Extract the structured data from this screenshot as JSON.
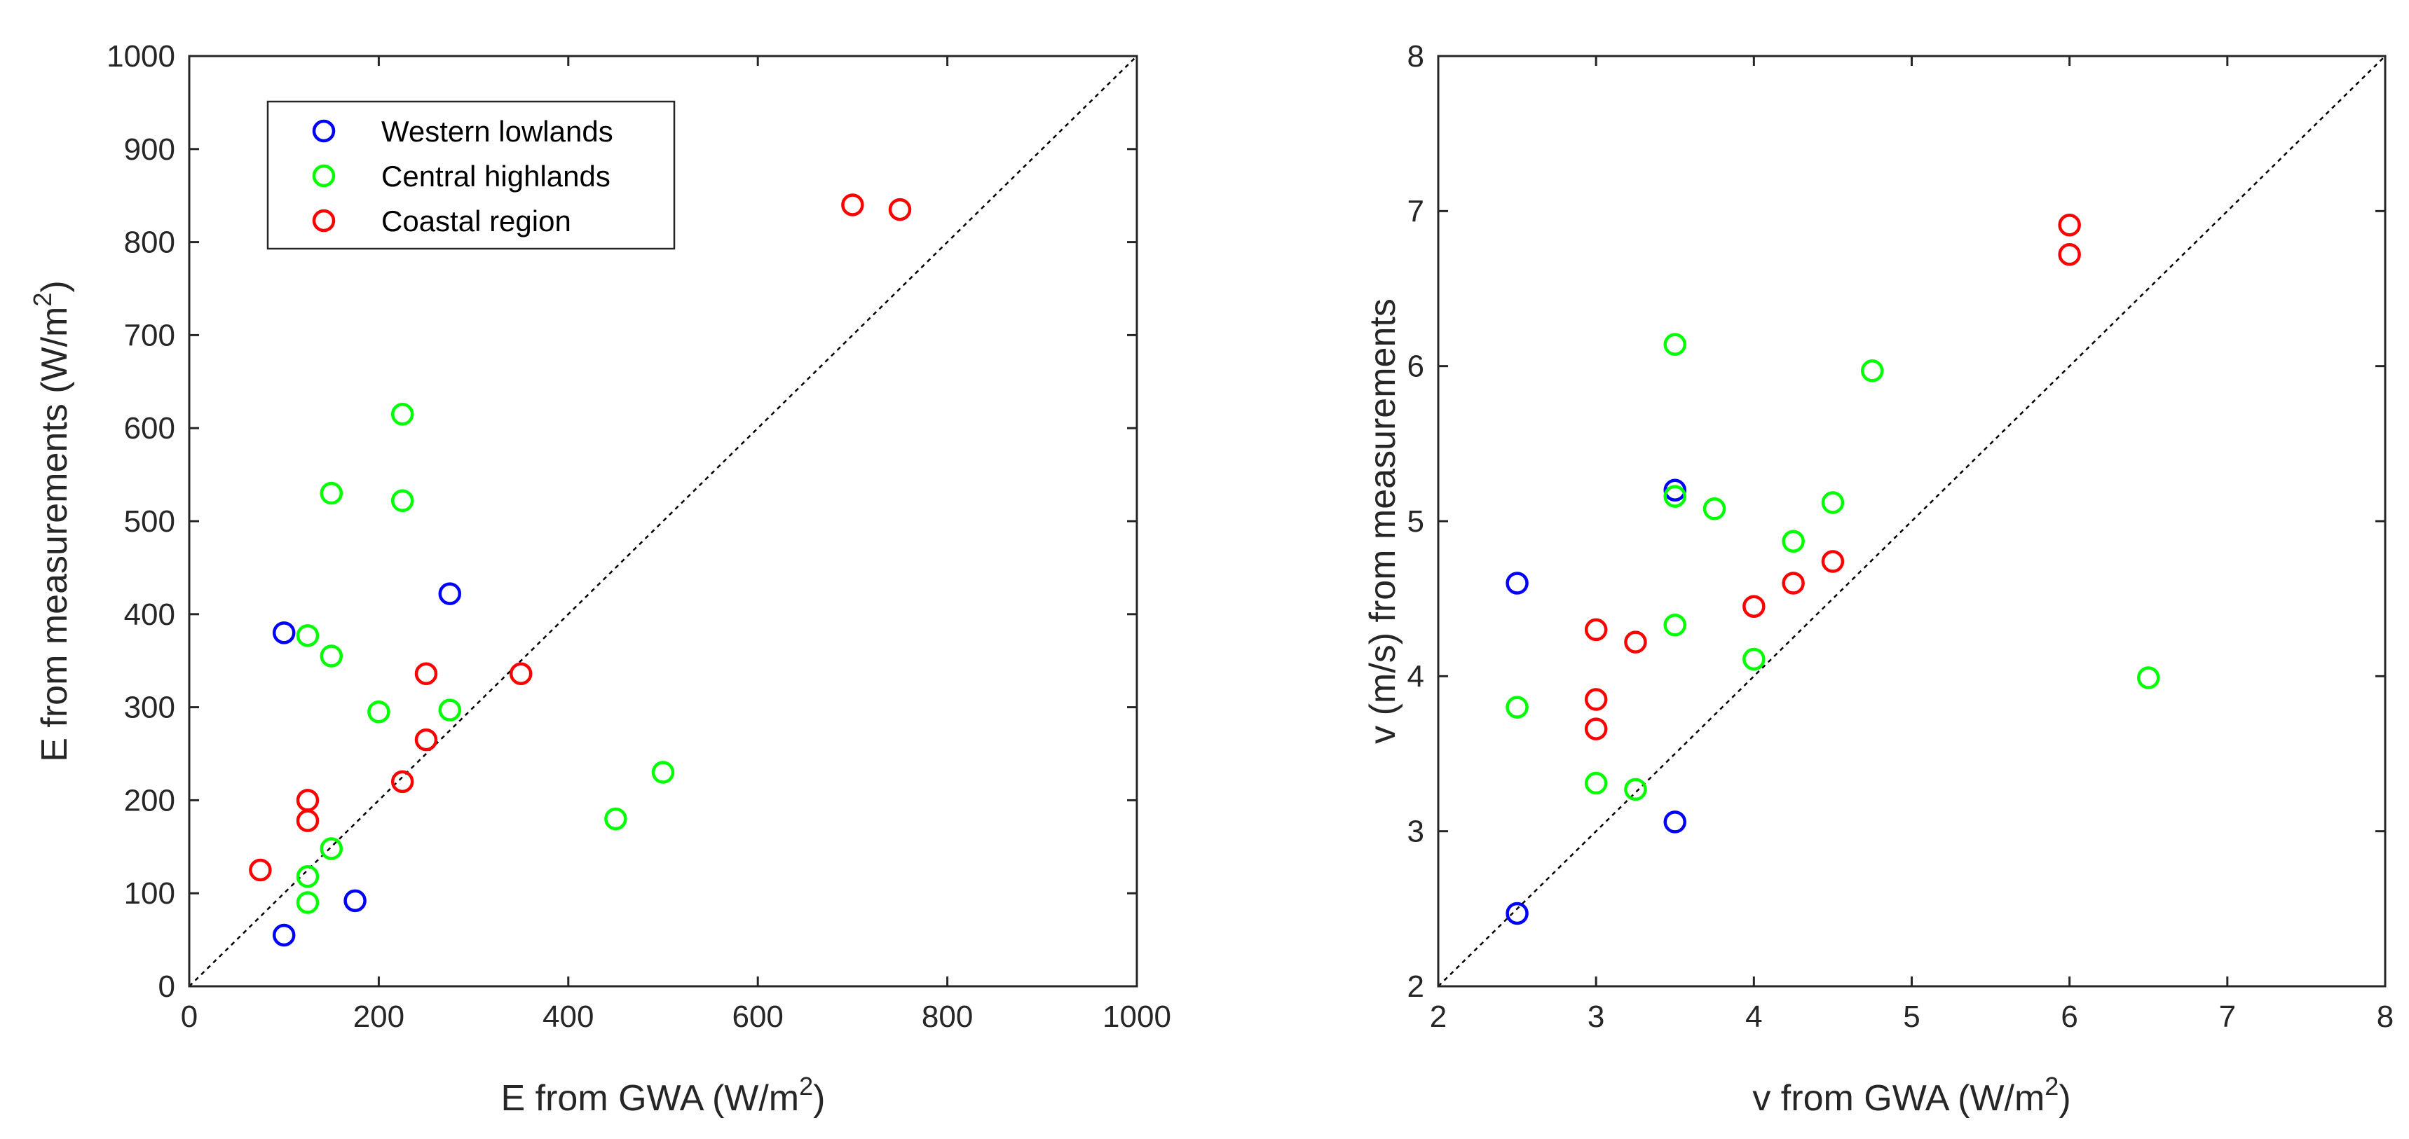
{
  "chart_data": [
    {
      "type": "scatter",
      "xlabel": "E from GWA (W/m",
      "xlabel_sup": "2",
      "xlabel_end": ")",
      "ylabel": "E from measurements (W/m",
      "ylabel_sup": "2",
      "ylabel_end": ")",
      "xlim": [
        0,
        1000
      ],
      "ylim": [
        0,
        1000
      ],
      "xticks": [
        0,
        200,
        400,
        600,
        800,
        1000
      ],
      "yticks": [
        0,
        100,
        200,
        300,
        400,
        500,
        600,
        700,
        800,
        900,
        1000
      ],
      "reference_line": "y = x (dashed)",
      "legend_position": "top-left",
      "series": [
        {
          "name": "Western lowlands",
          "color": "#0000ff",
          "points": [
            [
              100,
              380
            ],
            [
              275,
              422
            ],
            [
              175,
              92
            ],
            [
              100,
              55
            ]
          ]
        },
        {
          "name": "Central highlands",
          "color": "#00ff00",
          "points": [
            [
              225,
              615
            ],
            [
              150,
              530
            ],
            [
              225,
              522
            ],
            [
              125,
              377
            ],
            [
              150,
              355
            ],
            [
              200,
              295
            ],
            [
              275,
              297
            ],
            [
              500,
              230
            ],
            [
              450,
              180
            ],
            [
              150,
              148
            ],
            [
              125,
              118
            ],
            [
              125,
              90
            ]
          ]
        },
        {
          "name": "Coastal region",
          "color": "#ff0000",
          "points": [
            [
              700,
              840
            ],
            [
              750,
              835
            ],
            [
              250,
              336
            ],
            [
              350,
              336
            ],
            [
              250,
              265
            ],
            [
              225,
              220
            ],
            [
              125,
              200
            ],
            [
              125,
              178
            ],
            [
              75,
              125
            ]
          ]
        }
      ]
    },
    {
      "type": "scatter",
      "xlabel": "v from GWA (W/m",
      "xlabel_sup": "2",
      "xlabel_end": ")",
      "ylabel": "v (m/s) from measurements",
      "xlim": [
        2,
        8
      ],
      "ylim": [
        2,
        8
      ],
      "xticks": [
        2,
        3,
        4,
        5,
        6,
        7,
        8
      ],
      "yticks": [
        2,
        3,
        4,
        5,
        6,
        7,
        8
      ],
      "reference_line": "y = x (dashed)",
      "series": [
        {
          "name": "Western lowlands",
          "color": "#0000ff",
          "points": [
            [
              2.5,
              4.6
            ],
            [
              3.5,
              5.2
            ],
            [
              3.5,
              3.06
            ],
            [
              2.5,
              2.47
            ]
          ]
        },
        {
          "name": "Central highlands",
          "color": "#00ff00",
          "points": [
            [
              3.5,
              6.14
            ],
            [
              4.75,
              5.97
            ],
            [
              3.5,
              5.16
            ],
            [
              3.75,
              5.08
            ],
            [
              4.5,
              5.12
            ],
            [
              4.25,
              4.87
            ],
            [
              3.5,
              4.33
            ],
            [
              4.0,
              4.11
            ],
            [
              6.5,
              3.99
            ],
            [
              2.5,
              3.8
            ],
            [
              3.0,
              3.31
            ],
            [
              3.25,
              3.27
            ]
          ]
        },
        {
          "name": "Coastal region",
          "color": "#ff0000",
          "points": [
            [
              6.0,
              6.91
            ],
            [
              6.0,
              6.72
            ],
            [
              4.5,
              4.74
            ],
            [
              4.25,
              4.6
            ],
            [
              4.0,
              4.45
            ],
            [
              3.0,
              4.3
            ],
            [
              3.25,
              4.22
            ],
            [
              3.0,
              3.85
            ],
            [
              3.0,
              3.66
            ]
          ]
        }
      ]
    }
  ]
}
